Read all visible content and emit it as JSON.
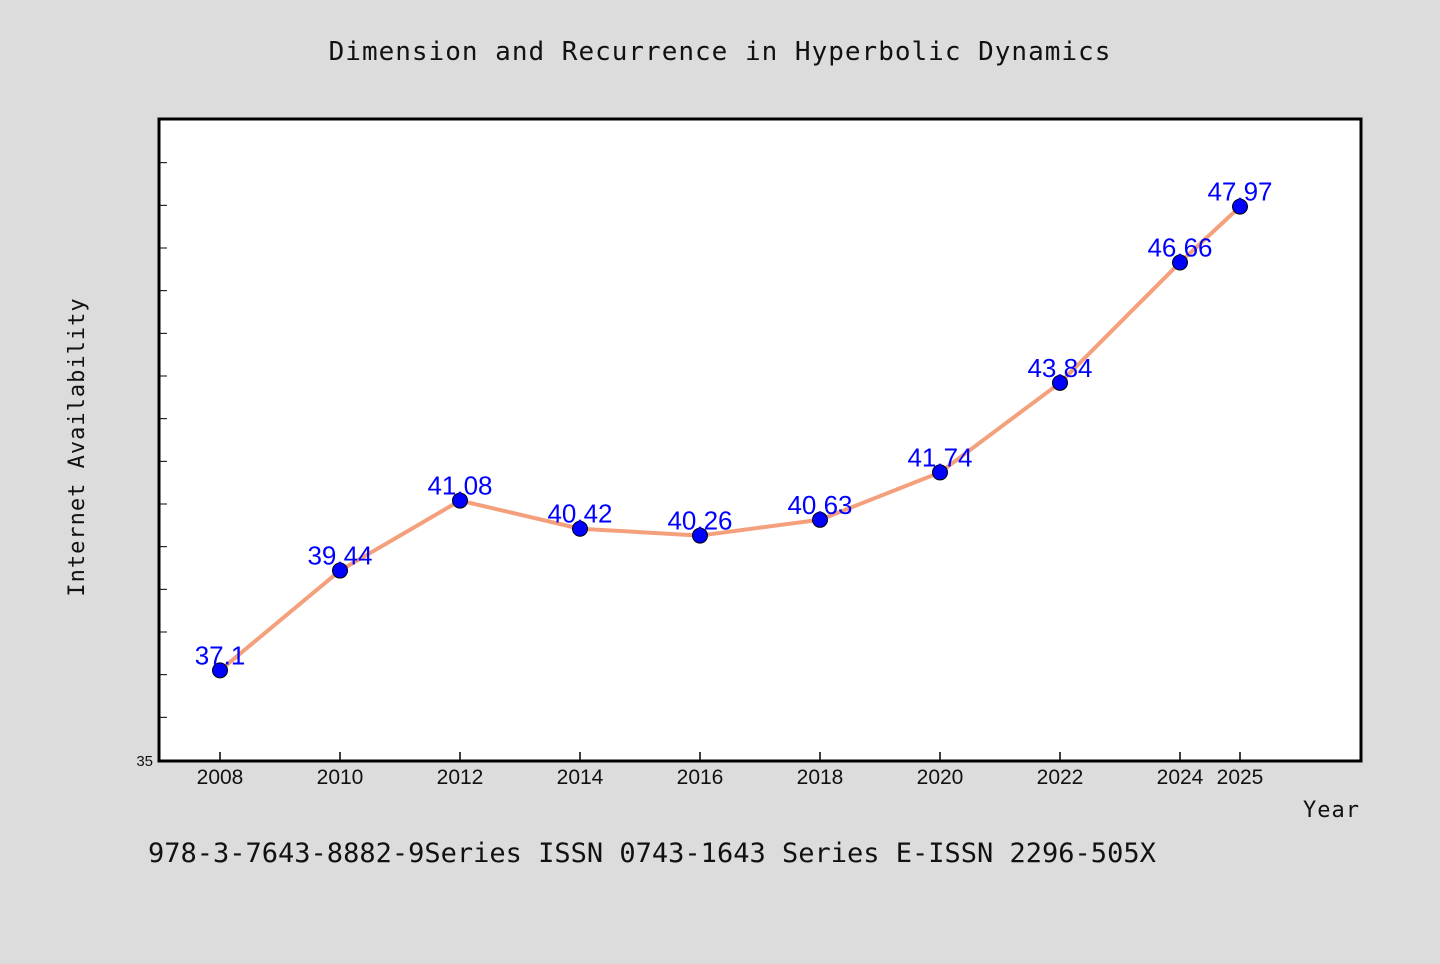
{
  "chart_data": {
    "type": "line",
    "title": "Dimension and Recurrence in Hyperbolic Dynamics",
    "xlabel": "Year",
    "ylabel": "Internet Availability",
    "categories": [
      "2008",
      "2010",
      "2012",
      "2014",
      "2016",
      "2018",
      "2020",
      "2022",
      "2024",
      "2025"
    ],
    "series": [
      {
        "values": [
          37.1,
          39.44,
          41.08,
          40.42,
          40.26,
          40.63,
          41.74,
          43.84,
          46.66,
          47.97
        ],
        "data_labels": [
          "37.1",
          "39.44",
          "41.08",
          "40.42",
          "40.26",
          "40.63",
          "41.74",
          "43.84",
          "46.66",
          "47.97"
        ]
      }
    ],
    "ylim": [
      35,
      50
    ],
    "y_tick_labels": [
      "35"
    ],
    "grid": false,
    "legend": "none",
    "colors": {
      "line": "#f4a07c",
      "marker": "#0000ff",
      "labels": "#0000ff",
      "background": "#dcdcdc",
      "plot_background": "#ffffff"
    }
  },
  "footer_text": "978-3-7643-8882-9Series ISSN 0743-1643 Series E-ISSN 2296-505X"
}
